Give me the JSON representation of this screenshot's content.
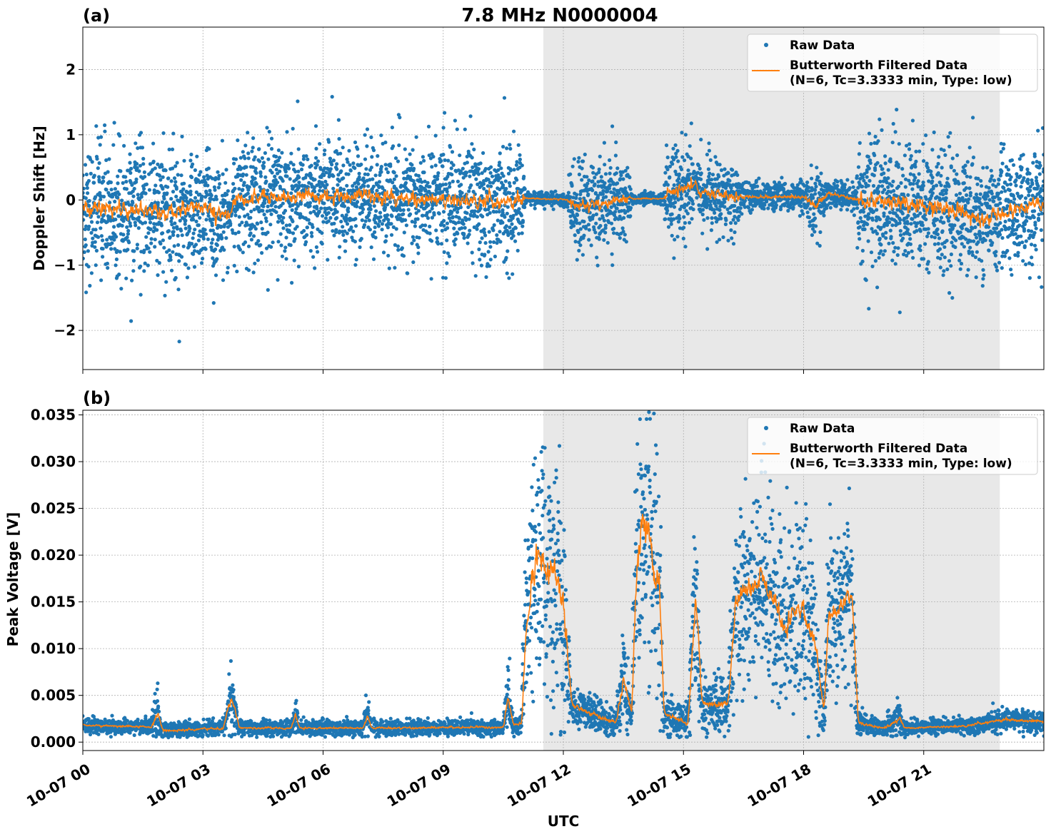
{
  "title": "7.8 MHz N0000004",
  "chart_data": [
    {
      "type": "scatter",
      "panel_label": "(a)",
      "title": "7.8 MHz N0000004",
      "xlabel": "",
      "ylabel": "Doppler Shift [Hz]",
      "xlim_hours": [
        0,
        24
      ],
      "ylim": [
        -2.6,
        2.65
      ],
      "yticks": [
        -2,
        -1,
        0,
        1,
        2
      ],
      "ytick_labels": [
        "−2",
        "−1",
        "0",
        "1",
        "2"
      ],
      "grid": true,
      "shaded_region_hours": [
        11.5,
        22.9
      ],
      "legend": {
        "placement": "top-right",
        "entries": [
          "Raw Data",
          "Butterworth Filtered Data",
          "(N=6, Tc=3.3333 min, Type: low)"
        ]
      },
      "series": [
        {
          "name": "Raw Data",
          "color": "#1f77b4",
          "kind": "scatter"
        },
        {
          "name": "Butterworth Filtered Data (N=6, Tc=3.3333 min, Type: low)",
          "color": "#ff7f0e",
          "kind": "line"
        }
      ],
      "envelope_hours_mean_sd": [
        [
          0,
          -0.1,
          0.5
        ],
        [
          1,
          -0.15,
          0.5
        ],
        [
          2,
          -0.2,
          0.5
        ],
        [
          3,
          -0.1,
          0.5
        ],
        [
          3.6,
          -0.3,
          0.5
        ],
        [
          3.7,
          -0.2,
          0.05
        ],
        [
          3.75,
          0,
          0.45
        ],
        [
          5,
          0.05,
          0.45
        ],
        [
          7,
          0.05,
          0.45
        ],
        [
          9,
          0,
          0.45
        ],
        [
          10.5,
          -0.05,
          0.45
        ],
        [
          11,
          0,
          0.45
        ],
        [
          11.05,
          0.03,
          0.05
        ],
        [
          12.1,
          0,
          0.05
        ],
        [
          12.2,
          -0.1,
          0.35
        ],
        [
          13.6,
          0,
          0.35
        ],
        [
          13.7,
          0.02,
          0.04
        ],
        [
          14.5,
          0.02,
          0.04
        ],
        [
          14.6,
          0.1,
          0.35
        ],
        [
          15.2,
          0.2,
          0.35
        ],
        [
          15.3,
          0.3,
          0.05
        ],
        [
          15.4,
          0.1,
          0.3
        ],
        [
          16.3,
          0.05,
          0.3
        ],
        [
          16.5,
          0.05,
          0.1
        ],
        [
          18,
          0.05,
          0.1
        ],
        [
          18.3,
          -0.1,
          0.3
        ],
        [
          18.6,
          0.1,
          0.1
        ],
        [
          19.3,
          0.0,
          0.1
        ],
        [
          19.4,
          0,
          0.5
        ],
        [
          21,
          -0.05,
          0.5
        ],
        [
          22.5,
          -0.3,
          0.45
        ],
        [
          24,
          0,
          0.45
        ]
      ]
    },
    {
      "type": "scatter",
      "panel_label": "(b)",
      "xlabel": "UTC",
      "ylabel": "Peak Voltage [V]",
      "xlim_hours": [
        0,
        24
      ],
      "ylim": [
        -0.0009,
        0.0355
      ],
      "yticks": [
        0,
        0.005,
        0.01,
        0.015,
        0.02,
        0.025,
        0.03,
        0.035
      ],
      "ytick_labels": [
        "0.000",
        "0.005",
        "0.010",
        "0.015",
        "0.020",
        "0.025",
        "0.030",
        "0.035"
      ],
      "xticks_hours": [
        0,
        3,
        6,
        9,
        12,
        15,
        18,
        21
      ],
      "xtick_labels": [
        "10-07 00",
        "10-07 03",
        "10-07 06",
        "10-07 09",
        "10-07 12",
        "10-07 15",
        "10-07 18",
        "10-07 21"
      ],
      "grid": true,
      "shaded_region_hours": [
        11.5,
        22.9
      ],
      "legend": {
        "placement": "top-right",
        "entries": [
          "Raw Data",
          "Butterworth Filtered Data",
          "(N=6, Tc=3.3333 min, Type: low)"
        ]
      },
      "series": [
        {
          "name": "Raw Data",
          "color": "#1f77b4",
          "kind": "scatter"
        },
        {
          "name": "Butterworth Filtered Data (N=6, Tc=3.3333 min, Type: low)",
          "color": "#ff7f0e",
          "kind": "line"
        }
      ],
      "envelope_hours_mean_sd": [
        [
          0,
          0.0018,
          0.0004
        ],
        [
          1.7,
          0.0016,
          0.0004
        ],
        [
          1.85,
          0.003,
          0.0015
        ],
        [
          2,
          0.0012,
          0.0004
        ],
        [
          3.5,
          0.0015,
          0.0004
        ],
        [
          3.7,
          0.005,
          0.002
        ],
        [
          3.9,
          0.0015,
          0.0004
        ],
        [
          5.2,
          0.0015,
          0.0004
        ],
        [
          5.3,
          0.003,
          0.001
        ],
        [
          5.4,
          0.0015,
          0.0004
        ],
        [
          7.0,
          0.0015,
          0.0004
        ],
        [
          7.1,
          0.003,
          0.001
        ],
        [
          7.2,
          0.0015,
          0.0004
        ],
        [
          10.5,
          0.0016,
          0.0004
        ],
        [
          10.6,
          0.005,
          0.002
        ],
        [
          10.75,
          0.0018,
          0.0005
        ],
        [
          10.95,
          0.002,
          0.0006
        ],
        [
          11.05,
          0.012,
          0.004
        ],
        [
          11.3,
          0.02,
          0.007
        ],
        [
          11.8,
          0.018,
          0.007
        ],
        [
          12.0,
          0.014,
          0.006
        ],
        [
          12.2,
          0.004,
          0.001
        ],
        [
          13.3,
          0.002,
          0.0008
        ],
        [
          13.5,
          0.007,
          0.003
        ],
        [
          13.7,
          0.003,
          0.001
        ],
        [
          13.8,
          0.018,
          0.007
        ],
        [
          14.0,
          0.024,
          0.007
        ],
        [
          14.4,
          0.016,
          0.007
        ],
        [
          14.5,
          0.003,
          0.001
        ],
        [
          15.1,
          0.002,
          0.0008
        ],
        [
          15.3,
          0.016,
          0.005
        ],
        [
          15.45,
          0.004,
          0.0015
        ],
        [
          16.1,
          0.004,
          0.0015
        ],
        [
          16.3,
          0.015,
          0.005
        ],
        [
          17.0,
          0.018,
          0.005
        ],
        [
          17.5,
          0.012,
          0.005
        ],
        [
          17.9,
          0.015,
          0.005
        ],
        [
          18.3,
          0.01,
          0.004
        ],
        [
          18.5,
          0.003,
          0.001
        ],
        [
          18.6,
          0.013,
          0.004
        ],
        [
          19.2,
          0.016,
          0.004
        ],
        [
          19.35,
          0.002,
          0.0006
        ],
        [
          20,
          0.0015,
          0.0004
        ],
        [
          20.4,
          0.0025,
          0.001
        ],
        [
          20.5,
          0.0015,
          0.0004
        ],
        [
          22,
          0.0017,
          0.0004
        ],
        [
          23,
          0.0024,
          0.0006
        ],
        [
          24,
          0.0022,
          0.0006
        ]
      ]
    }
  ]
}
